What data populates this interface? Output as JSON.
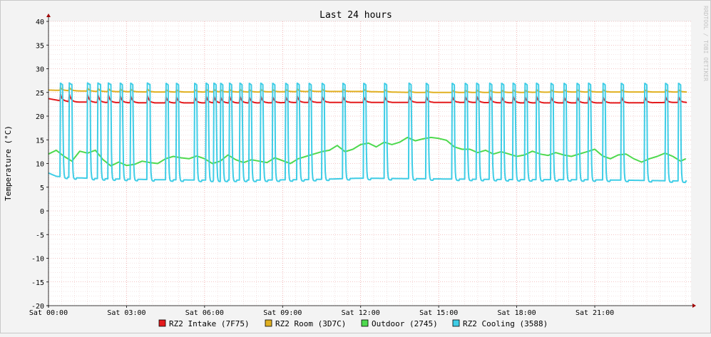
{
  "chart_data": {
    "type": "line",
    "title": "Last 24 hours",
    "ylabel": "Temperature (°C)",
    "xlabel": "",
    "watermark": "RRDTOOL / TOBI OETIKER",
    "ylim": [
      -20,
      40
    ],
    "yticks": [
      40,
      35,
      30,
      25,
      20,
      15,
      10,
      5,
      0,
      -5,
      -10,
      -15,
      -20
    ],
    "xlim": [
      0,
      24.7
    ],
    "xticks": [
      {
        "hour": 0,
        "label": "Sat 00:00"
      },
      {
        "hour": 3,
        "label": "Sat 03:00"
      },
      {
        "hour": 6,
        "label": "Sat 06:00"
      },
      {
        "hour": 9,
        "label": "Sat 09:00"
      },
      {
        "hour": 12,
        "label": "Sat 12:00"
      },
      {
        "hour": 15,
        "label": "Sat 15:00"
      },
      {
        "hour": 18,
        "label": "Sat 18:00"
      },
      {
        "hour": 21,
        "label": "Sat 21:00"
      }
    ],
    "grid": true,
    "legend_position": "bottom",
    "cooling_spikes_hours": [
      0.45,
      0.8,
      1.5,
      1.9,
      2.3,
      2.75,
      3.15,
      3.8,
      4.5,
      4.9,
      5.6,
      6.05,
      6.35,
      6.6,
      6.95,
      7.35,
      7.7,
      8.15,
      8.6,
      9.1,
      9.55,
      10.0,
      10.5,
      11.3,
      12.1,
      12.9,
      13.85,
      14.5,
      15.5,
      16.0,
      16.45,
      16.95,
      17.4,
      17.85,
      18.3,
      18.75,
      19.3,
      19.8,
      20.3,
      20.75,
      21.3,
      22.0,
      22.9,
      23.7,
      24.2
    ],
    "series": [
      {
        "name": "RZ2 Intake (7F75)",
        "color": "#e41a1c",
        "base": 23.0,
        "spike_peak": 24.6,
        "values": [
          [
            0,
            23.7
          ],
          [
            0.5,
            23.2
          ],
          [
            1,
            23.0
          ],
          [
            2,
            22.9
          ],
          [
            4,
            22.8
          ],
          [
            6,
            22.8
          ],
          [
            8,
            22.8
          ],
          [
            10,
            22.9
          ],
          [
            12,
            22.9
          ],
          [
            14,
            22.9
          ],
          [
            16,
            22.9
          ],
          [
            18,
            22.8
          ],
          [
            20,
            22.8
          ],
          [
            22,
            22.8
          ],
          [
            24.5,
            22.9
          ]
        ]
      },
      {
        "name": "RZ2 Room (3D7C)",
        "color": "#e0b020",
        "base": 25.3,
        "spike_peak": 26.0,
        "values": [
          [
            0,
            25.5
          ],
          [
            2,
            25.2
          ],
          [
            4,
            25.1
          ],
          [
            6,
            25.1
          ],
          [
            8,
            25.1
          ],
          [
            10,
            25.2
          ],
          [
            12,
            25.2
          ],
          [
            14,
            25.0
          ],
          [
            16,
            25.0
          ],
          [
            18,
            25.0
          ],
          [
            20,
            25.1
          ],
          [
            22,
            25.1
          ],
          [
            24.5,
            25.1
          ]
        ]
      },
      {
        "name": "Outdoor (2745)",
        "color": "#4ed94e",
        "values": [
          [
            0,
            12.0
          ],
          [
            0.3,
            12.8
          ],
          [
            0.6,
            11.5
          ],
          [
            0.9,
            10.5
          ],
          [
            1.2,
            12.6
          ],
          [
            1.5,
            12.2
          ],
          [
            1.8,
            12.8
          ],
          [
            2.1,
            10.8
          ],
          [
            2.4,
            9.5
          ],
          [
            2.7,
            10.3
          ],
          [
            3.0,
            9.6
          ],
          [
            3.3,
            9.8
          ],
          [
            3.6,
            10.5
          ],
          [
            3.9,
            10.2
          ],
          [
            4.2,
            10.0
          ],
          [
            4.5,
            11.0
          ],
          [
            4.8,
            11.5
          ],
          [
            5.1,
            11.2
          ],
          [
            5.4,
            11.0
          ],
          [
            5.7,
            11.6
          ],
          [
            6.0,
            11.0
          ],
          [
            6.3,
            10.0
          ],
          [
            6.6,
            10.5
          ],
          [
            6.9,
            11.8
          ],
          [
            7.2,
            10.8
          ],
          [
            7.5,
            10.2
          ],
          [
            7.8,
            10.8
          ],
          [
            8.1,
            10.5
          ],
          [
            8.4,
            10.2
          ],
          [
            8.7,
            11.2
          ],
          [
            9.0,
            10.6
          ],
          [
            9.3,
            10.0
          ],
          [
            9.6,
            11.0
          ],
          [
            9.9,
            11.5
          ],
          [
            10.2,
            12.0
          ],
          [
            10.5,
            12.5
          ],
          [
            10.8,
            12.8
          ],
          [
            11.1,
            13.8
          ],
          [
            11.4,
            12.5
          ],
          [
            11.7,
            13.0
          ],
          [
            12.0,
            14.0
          ],
          [
            12.3,
            14.3
          ],
          [
            12.6,
            13.5
          ],
          [
            12.9,
            14.5
          ],
          [
            13.2,
            14.0
          ],
          [
            13.5,
            14.5
          ],
          [
            13.8,
            15.5
          ],
          [
            14.1,
            14.8
          ],
          [
            14.4,
            15.2
          ],
          [
            14.7,
            15.5
          ],
          [
            15.0,
            15.3
          ],
          [
            15.3,
            14.9
          ],
          [
            15.6,
            13.5
          ],
          [
            15.9,
            13.0
          ],
          [
            16.2,
            13.0
          ],
          [
            16.5,
            12.3
          ],
          [
            16.8,
            12.8
          ],
          [
            17.1,
            12.0
          ],
          [
            17.4,
            12.5
          ],
          [
            17.7,
            12.0
          ],
          [
            18.0,
            11.5
          ],
          [
            18.3,
            11.8
          ],
          [
            18.6,
            12.6
          ],
          [
            18.9,
            12.0
          ],
          [
            19.2,
            11.7
          ],
          [
            19.5,
            12.3
          ],
          [
            19.8,
            11.8
          ],
          [
            20.1,
            11.5
          ],
          [
            20.4,
            12.0
          ],
          [
            20.7,
            12.5
          ],
          [
            21.0,
            13.0
          ],
          [
            21.3,
            11.6
          ],
          [
            21.6,
            11.0
          ],
          [
            21.9,
            11.8
          ],
          [
            22.2,
            12.0
          ],
          [
            22.5,
            11.0
          ],
          [
            22.8,
            10.3
          ],
          [
            23.1,
            11.0
          ],
          [
            23.4,
            11.5
          ],
          [
            23.7,
            12.2
          ],
          [
            24.0,
            11.5
          ],
          [
            24.3,
            10.5
          ],
          [
            24.5,
            11.0
          ]
        ]
      },
      {
        "name": "RZ2 Cooling (3588)",
        "color": "#3fcde6",
        "base": 6.8,
        "spike_peak": 27.0,
        "values": [
          [
            0,
            8.0
          ],
          [
            0.3,
            7.3
          ],
          [
            1,
            7.0
          ],
          [
            2,
            6.8
          ],
          [
            4,
            6.6
          ],
          [
            6,
            6.5
          ],
          [
            8,
            6.5
          ],
          [
            10,
            6.6
          ],
          [
            12,
            6.9
          ],
          [
            14,
            6.8
          ],
          [
            16,
            6.7
          ],
          [
            18,
            6.6
          ],
          [
            20,
            6.6
          ],
          [
            22,
            6.5
          ],
          [
            24.5,
            6.3
          ]
        ]
      }
    ]
  }
}
